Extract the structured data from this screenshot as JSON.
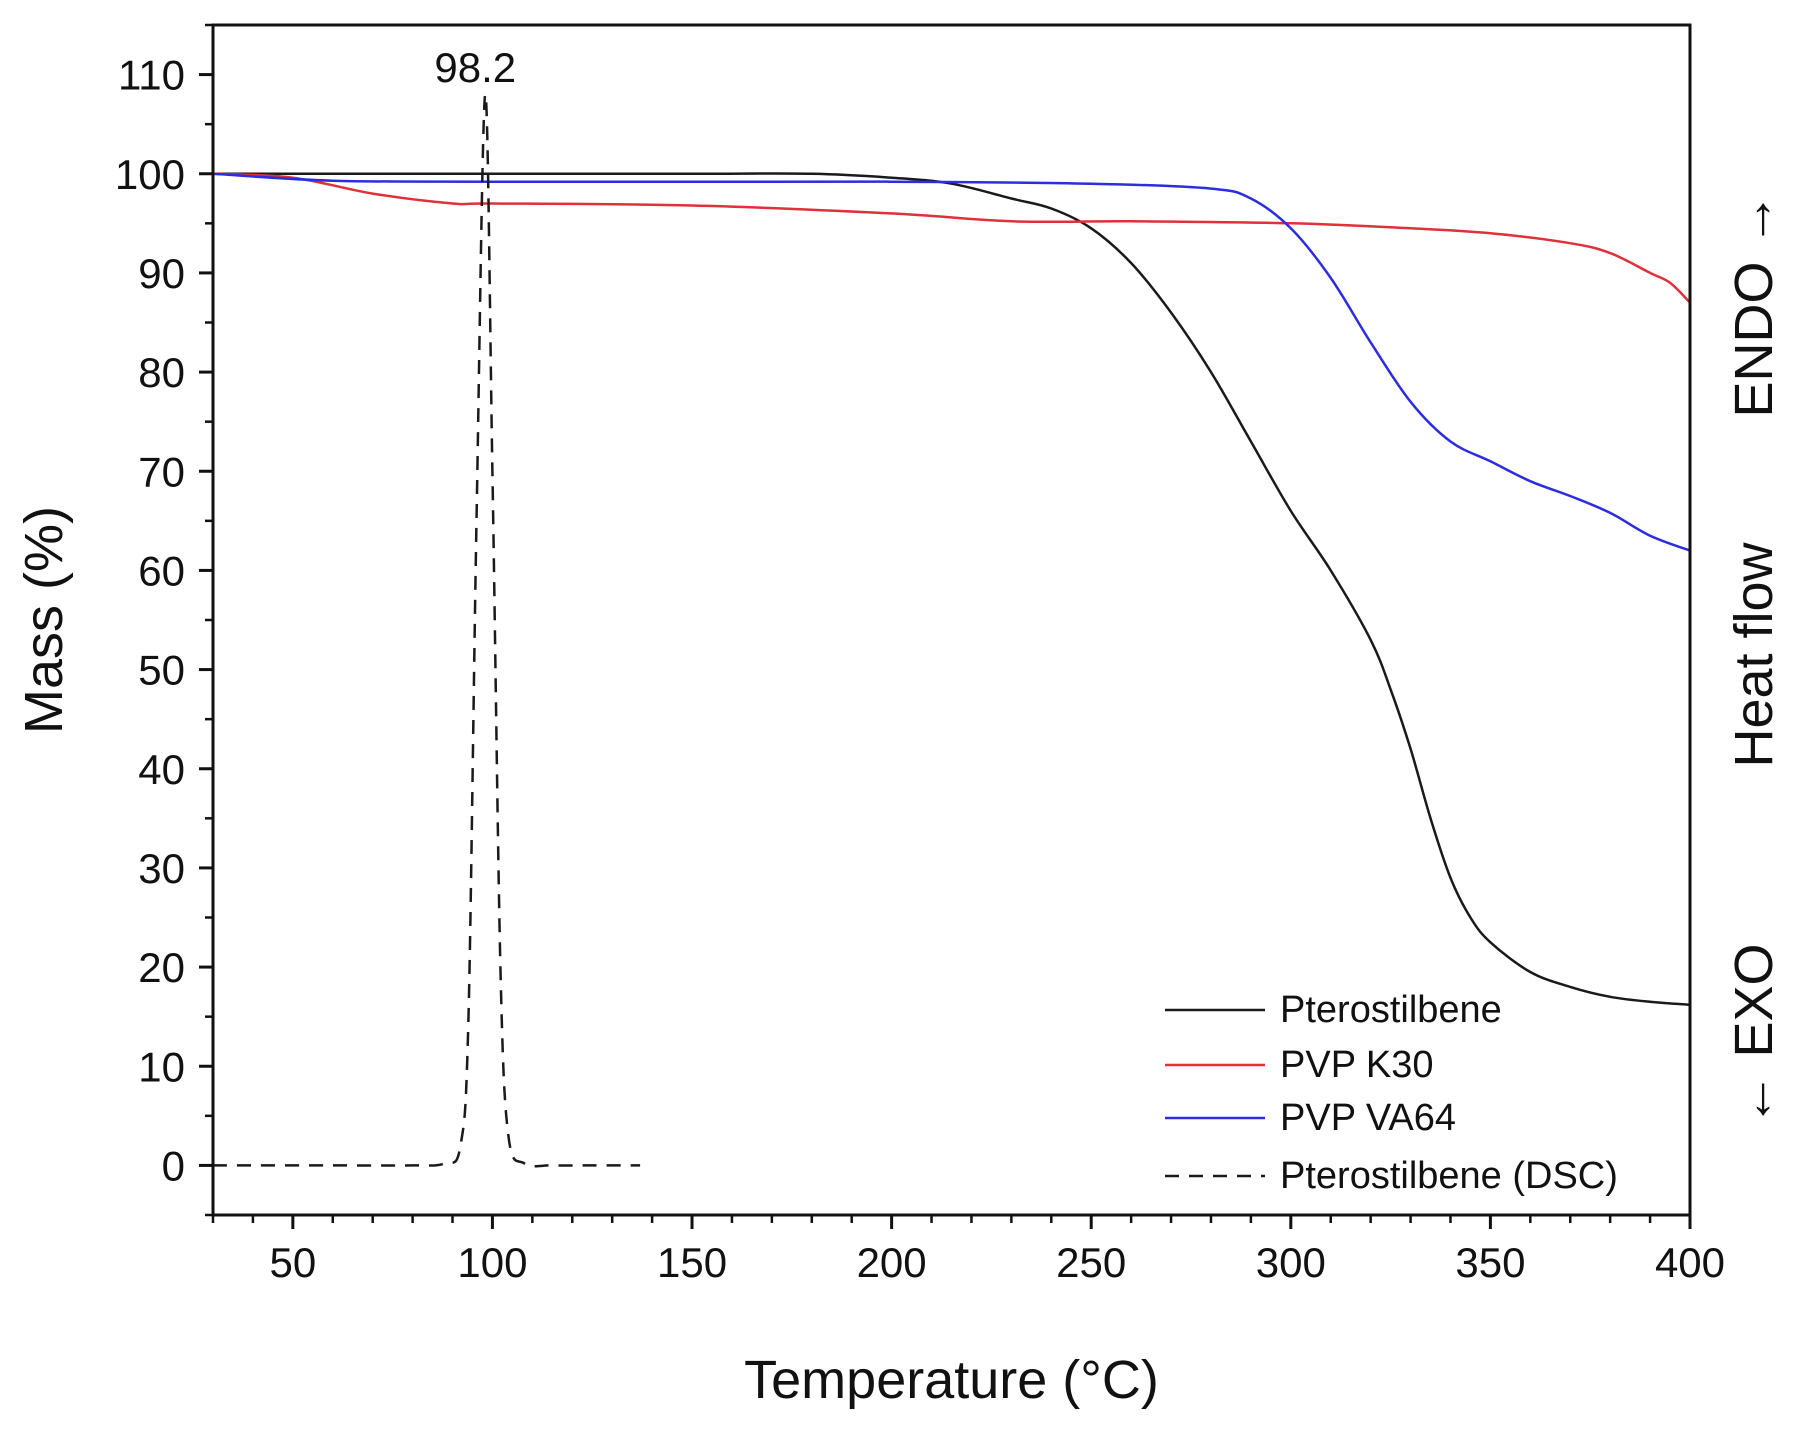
{
  "chart_data": {
    "type": "line",
    "title": "",
    "xlabel": "Temperature (°C)",
    "ylabel": "Mass (%)",
    "y2label": {
      "exo": "← EXO",
      "heat_flow": "Heat flow",
      "endo": "ENDO →"
    },
    "xlim": [
      30,
      400
    ],
    "ylim": [
      -5,
      115
    ],
    "x_ticks": [
      50,
      100,
      150,
      200,
      250,
      300,
      350,
      400
    ],
    "x_tick_labels": [
      "50",
      "100",
      "150",
      "200",
      "250",
      "300",
      "350",
      "400"
    ],
    "y_ticks": [
      0,
      10,
      20,
      30,
      40,
      50,
      60,
      70,
      80,
      90,
      100,
      110
    ],
    "y_tick_labels": [
      "0",
      "10",
      "20",
      "30",
      "40",
      "50",
      "60",
      "70",
      "80",
      "90",
      "100",
      "110"
    ],
    "annotation": {
      "text": "98.2",
      "x": 98.2,
      "y": 108
    },
    "legend_position": "bottom-right",
    "series": [
      {
        "name": "Pterostilbene",
        "color": "#1a1a1a",
        "dash": "solid",
        "x": [
          30,
          50,
          100,
          150,
          180,
          200,
          215,
          230,
          240,
          250,
          260,
          270,
          280,
          290,
          300,
          310,
          320,
          325,
          330,
          335,
          340,
          345,
          350,
          360,
          370,
          380,
          390,
          400
        ],
        "y": [
          100,
          100,
          100,
          100,
          100,
          99.6,
          99,
          97.5,
          96.5,
          94.5,
          91,
          86,
          80,
          73,
          66,
          60,
          53,
          48,
          42,
          35,
          29,
          25,
          22.5,
          19.5,
          18,
          17,
          16.5,
          16.2
        ]
      },
      {
        "name": "PVP K30",
        "color": "#e0303a",
        "dash": "solid",
        "x": [
          30,
          50,
          70,
          90,
          100,
          150,
          200,
          230,
          260,
          300,
          330,
          350,
          370,
          380,
          390,
          395,
          400
        ],
        "y": [
          100,
          99.6,
          98,
          97,
          97,
          96.8,
          96,
          95.2,
          95.2,
          95,
          94.5,
          94,
          93,
          92,
          90,
          89,
          87
        ]
      },
      {
        "name": "PVP VA64",
        "color": "#2d2de0",
        "dash": "solid",
        "x": [
          30,
          60,
          100,
          150,
          200,
          250,
          280,
          290,
          300,
          310,
          320,
          330,
          340,
          350,
          360,
          370,
          380,
          390,
          400
        ],
        "y": [
          100,
          99.3,
          99.2,
          99.2,
          99.2,
          99,
          98.5,
          97.5,
          94.5,
          89.5,
          83,
          77,
          73,
          71,
          69,
          67.5,
          65.8,
          63.5,
          62
        ]
      },
      {
        "name": "Pterostilbene (DSC)",
        "color": "#1a1a1a",
        "dash": "dashed",
        "x": [
          30,
          60,
          80,
          88,
          92,
          94,
          96,
          98.2,
          100,
          102,
          104,
          108,
          115,
          125,
          137
        ],
        "y": [
          0,
          0,
          0,
          0.2,
          2,
          15,
          65,
          108,
          70,
          20,
          3,
          0.2,
          0,
          0,
          0
        ]
      }
    ]
  }
}
